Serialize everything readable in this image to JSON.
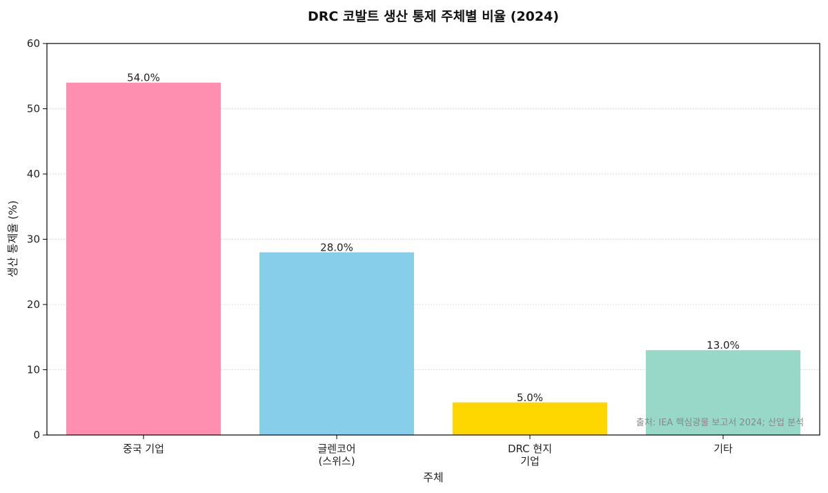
{
  "chart_data": {
    "type": "bar",
    "title": "DRC 코발트 생산 통제 주체별 비율 (2024)",
    "xlabel": "주체",
    "ylabel": "생산 통제율 (%)",
    "categories": [
      [
        "중국 기업"
      ],
      [
        "글렌코어",
        "(스위스)"
      ],
      [
        "DRC 현지",
        "기업"
      ],
      [
        "기타"
      ]
    ],
    "values": [
      54.0,
      28.0,
      5.0,
      13.0
    ],
    "data_labels": [
      "54.0%",
      "28.0%",
      "5.0%",
      "13.0%"
    ],
    "colors": [
      "#ff8fb0",
      "#87ceeb",
      "#ffd700",
      "#98d8c8"
    ],
    "ylim": [
      0,
      60
    ],
    "yticks": [
      0,
      10,
      20,
      30,
      40,
      50,
      60
    ],
    "grid": true,
    "legend": "none",
    "source_note": "출처: IEA 핵심광물 보고서 2024; 산업 분석"
  }
}
